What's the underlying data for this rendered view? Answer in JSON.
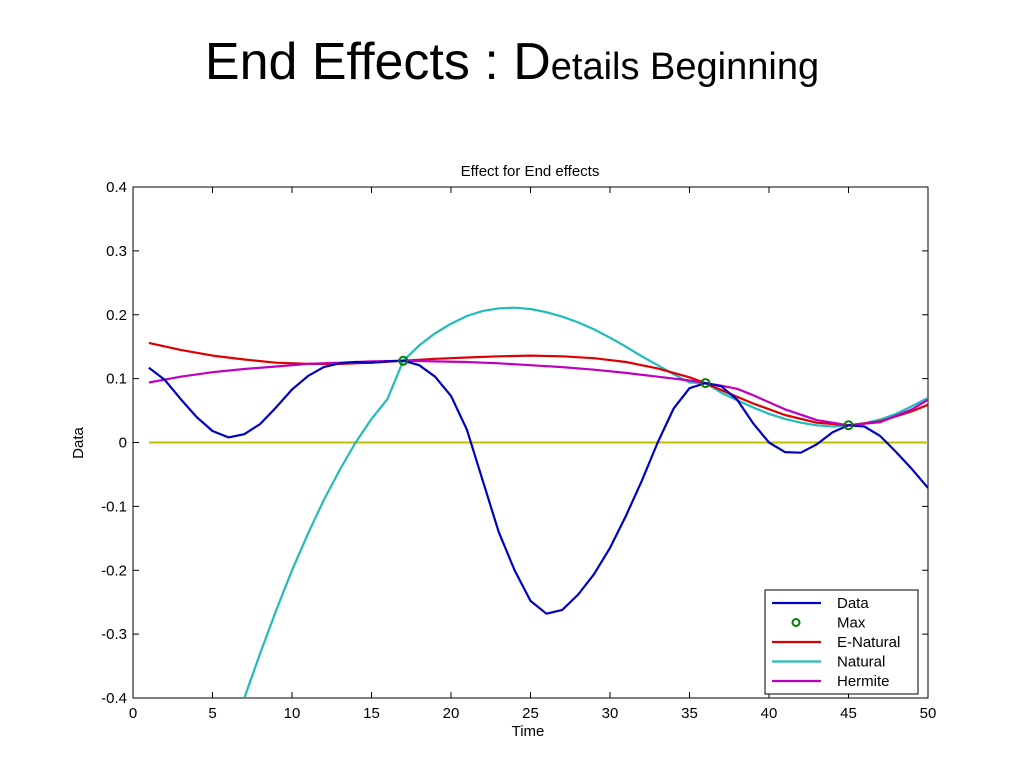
{
  "slide": {
    "title_main": "End Effects : D",
    "title_tail": "etails Beginning"
  },
  "chart_data": {
    "type": "line",
    "title": "Effect for End effects",
    "xlabel": "Time",
    "ylabel": "Data",
    "xlim": [
      0,
      50
    ],
    "ylim": [
      -0.4,
      0.4
    ],
    "xticks": [
      0,
      5,
      10,
      15,
      20,
      25,
      30,
      35,
      40,
      45,
      50
    ],
    "yticks": [
      -0.4,
      -0.3,
      -0.2,
      -0.1,
      0,
      0.1,
      0.2,
      0.3,
      0.4
    ],
    "grid": false,
    "legend_position": "bottom-right",
    "zero_line": {
      "y": 0,
      "color": "#bfbf00"
    },
    "series": [
      {
        "name": "Data",
        "kind": "line",
        "color": "#0000bf",
        "x": [
          1,
          2,
          3,
          4,
          5,
          6,
          7,
          8,
          9,
          10,
          11,
          12,
          13,
          14,
          15,
          16,
          17,
          18,
          19,
          20,
          21,
          22,
          23,
          24,
          25,
          26,
          27,
          28,
          29,
          30,
          31,
          32,
          33,
          34,
          35,
          36,
          37,
          38,
          39,
          40,
          41,
          42,
          43,
          44,
          45,
          46,
          47,
          48,
          49,
          50
        ],
        "y": [
          0.117,
          0.098,
          0.068,
          0.04,
          0.018,
          0.008,
          0.013,
          0.029,
          0.055,
          0.083,
          0.104,
          0.118,
          0.124,
          0.126,
          0.125,
          0.127,
          0.128,
          0.121,
          0.103,
          0.073,
          0.02,
          -0.06,
          -0.14,
          -0.2,
          -0.248,
          -0.268,
          -0.262,
          -0.238,
          -0.206,
          -0.165,
          -0.115,
          -0.06,
          0.0,
          0.053,
          0.085,
          0.093,
          0.088,
          0.067,
          0.03,
          0.0,
          -0.015,
          -0.016,
          -0.003,
          0.016,
          0.027,
          0.025,
          0.01,
          -0.015,
          -0.042,
          -0.071
        ]
      },
      {
        "name": "Max",
        "kind": "marker",
        "color": "#008000",
        "x": [
          17,
          36,
          45
        ],
        "y": [
          0.128,
          0.093,
          0.027
        ]
      },
      {
        "name": "E-Natural",
        "kind": "line",
        "color": "#dd0000",
        "x": [
          1,
          3,
          5,
          7,
          9,
          11,
          13,
          15,
          17,
          19,
          21,
          23,
          25,
          27,
          29,
          31,
          33,
          35,
          36,
          37,
          39,
          41,
          43,
          45,
          47,
          49,
          50
        ],
        "y": [
          0.156,
          0.145,
          0.136,
          0.13,
          0.125,
          0.123,
          0.123,
          0.125,
          0.128,
          0.131,
          0.133,
          0.135,
          0.136,
          0.135,
          0.132,
          0.126,
          0.116,
          0.102,
          0.093,
          0.082,
          0.061,
          0.043,
          0.031,
          0.027,
          0.033,
          0.049,
          0.059
        ]
      },
      {
        "name": "Natural",
        "kind": "line",
        "color": "#20bcbc",
        "x": [
          7,
          8,
          9,
          10,
          11,
          12,
          13,
          14,
          15,
          16,
          17,
          18,
          19,
          20,
          21,
          22,
          23,
          24,
          25,
          26,
          27,
          28,
          29,
          30,
          31,
          32,
          33,
          34,
          35,
          36,
          37,
          38,
          39,
          40,
          41,
          42,
          43,
          44,
          45,
          46,
          47,
          48,
          49,
          50
        ],
        "y": [
          -0.4,
          -0.33,
          -0.263,
          -0.2,
          -0.143,
          -0.09,
          -0.043,
          0.0,
          0.037,
          0.068,
          0.128,
          0.152,
          0.171,
          0.186,
          0.198,
          0.206,
          0.21,
          0.211,
          0.209,
          0.204,
          0.197,
          0.188,
          0.177,
          0.164,
          0.15,
          0.135,
          0.121,
          0.107,
          0.094,
          0.093,
          0.078,
          0.066,
          0.055,
          0.045,
          0.037,
          0.031,
          0.027,
          0.025,
          0.027,
          0.03,
          0.036,
          0.045,
          0.057,
          0.07
        ]
      },
      {
        "name": "Hermite",
        "kind": "line",
        "color": "#bf00bf",
        "x": [
          1,
          3,
          5,
          7,
          9,
          11,
          13,
          15,
          17,
          19,
          21,
          23,
          25,
          27,
          29,
          31,
          33,
          35,
          36,
          37,
          38,
          39,
          41,
          43,
          45,
          47,
          49,
          50
        ],
        "y": [
          0.094,
          0.103,
          0.11,
          0.115,
          0.119,
          0.123,
          0.125,
          0.127,
          0.128,
          0.127,
          0.126,
          0.124,
          0.121,
          0.118,
          0.114,
          0.109,
          0.103,
          0.097,
          0.093,
          0.089,
          0.084,
          0.074,
          0.052,
          0.035,
          0.027,
          0.032,
          0.052,
          0.067
        ]
      }
    ]
  }
}
